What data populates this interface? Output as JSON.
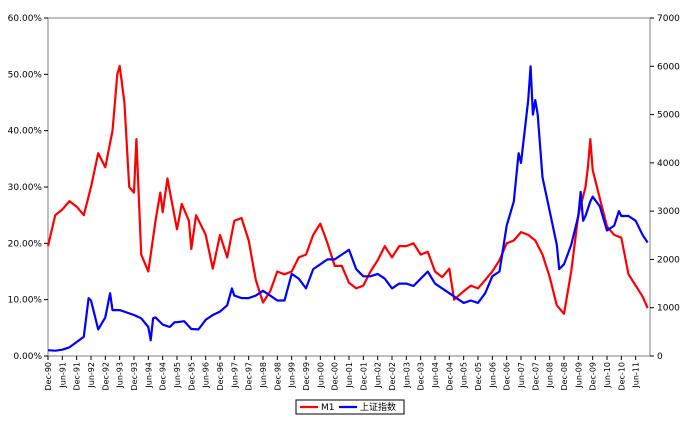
{
  "chart_data": {
    "type": "line",
    "title": "",
    "xlabel": "",
    "ylabel": "",
    "grid": false,
    "legend_position": "bottom",
    "y_left": {
      "min": 0,
      "max": 60,
      "unit": "%",
      "ticks": [
        "0.00%",
        "10.00%",
        "20.00%",
        "30.00%",
        "40.00%",
        "50.00%",
        "60.00%"
      ]
    },
    "y_right": {
      "min": 0,
      "max": 7000,
      "ticks": [
        "0",
        "1000",
        "2000",
        "3000",
        "4000",
        "5000",
        "6000",
        "7000"
      ]
    },
    "x_ticks": [
      "Dec-90",
      "Jun-91",
      "Dec-91",
      "Jun-92",
      "Dec-92",
      "Jun-93",
      "Dec-93",
      "Jun-94",
      "Dec-94",
      "Jun-95",
      "Dec-95",
      "Jun-96",
      "Dec-96",
      "Jun-97",
      "Dec-97",
      "Jun-98",
      "Dec-98",
      "Jun-99",
      "Dec-99",
      "Jun-00",
      "Dec-00",
      "Jun-01",
      "Dec-01",
      "Jun-02",
      "Dec-02",
      "Jun-03",
      "Dec-03",
      "Jun-04",
      "Dec-04",
      "Jun-05",
      "Dec-05",
      "Jun-06",
      "Dec-06",
      "Jun-07",
      "Dec-07",
      "Jun-08",
      "Dec-08",
      "Jun-09",
      "Dec-09",
      "Jun-10",
      "Dec-10",
      "Jun-11"
    ],
    "series": [
      {
        "name": "M1",
        "axis": "left",
        "color": "#ff0000",
        "points": [
          [
            "Dec-90",
            19.5
          ],
          [
            "Mar-91",
            25.0
          ],
          [
            "Jun-91",
            26.0
          ],
          [
            "Sep-91",
            27.5
          ],
          [
            "Dec-91",
            26.5
          ],
          [
            "Mar-92",
            25.0
          ],
          [
            "Jun-92",
            30.0
          ],
          [
            "Sep-92",
            36.0
          ],
          [
            "Dec-92",
            33.5
          ],
          [
            "Mar-93",
            40.0
          ],
          [
            "May-93",
            50.0
          ],
          [
            "Jun-93",
            51.5
          ],
          [
            "Aug-93",
            45.0
          ],
          [
            "Oct-93",
            30.0
          ],
          [
            "Dec-93",
            29.0
          ],
          [
            "Jan-94",
            38.5
          ],
          [
            "Mar-94",
            18.0
          ],
          [
            "Jun-94",
            15.0
          ],
          [
            "Sep-94",
            24.0
          ],
          [
            "Nov-94",
            29.0
          ],
          [
            "Dec-94",
            25.5
          ],
          [
            "Feb-95",
            31.5
          ],
          [
            "Jun-95",
            22.5
          ],
          [
            "Aug-95",
            27.0
          ],
          [
            "Nov-95",
            24.0
          ],
          [
            "Dec-95",
            19.0
          ],
          [
            "Feb-96",
            25.0
          ],
          [
            "Jun-96",
            21.5
          ],
          [
            "Sep-96",
            15.5
          ],
          [
            "Dec-96",
            21.5
          ],
          [
            "Mar-97",
            17.5
          ],
          [
            "Jun-97",
            24.0
          ],
          [
            "Sep-97",
            24.5
          ],
          [
            "Dec-97",
            20.5
          ],
          [
            "Mar-98",
            13.5
          ],
          [
            "Jun-98",
            9.5
          ],
          [
            "Sep-98",
            11.5
          ],
          [
            "Dec-98",
            15.0
          ],
          [
            "Mar-99",
            14.5
          ],
          [
            "Jun-99",
            15.0
          ],
          [
            "Sep-99",
            17.5
          ],
          [
            "Dec-99",
            18.0
          ],
          [
            "Mar-00",
            21.5
          ],
          [
            "Jun-00",
            23.5
          ],
          [
            "Sep-00",
            20.0
          ],
          [
            "Dec-00",
            16.0
          ],
          [
            "Mar-01",
            16.0
          ],
          [
            "Jun-01",
            13.0
          ],
          [
            "Sep-01",
            12.0
          ],
          [
            "Dec-01",
            12.5
          ],
          [
            "Mar-02",
            15.0
          ],
          [
            "Jun-02",
            17.0
          ],
          [
            "Sep-02",
            19.5
          ],
          [
            "Dec-02",
            17.5
          ],
          [
            "Mar-03",
            19.5
          ],
          [
            "Jun-03",
            19.5
          ],
          [
            "Sep-03",
            20.0
          ],
          [
            "Dec-03",
            18.0
          ],
          [
            "Mar-04",
            18.5
          ],
          [
            "Jun-04",
            15.0
          ],
          [
            "Sep-04",
            14.0
          ],
          [
            "Dec-04",
            15.5
          ],
          [
            "Feb-05",
            10.0
          ],
          [
            "Jun-05",
            11.5
          ],
          [
            "Sep-05",
            12.5
          ],
          [
            "Dec-05",
            12.0
          ],
          [
            "Mar-06",
            13.5
          ],
          [
            "Jun-06",
            15.0
          ],
          [
            "Sep-06",
            17.0
          ],
          [
            "Dec-06",
            20.0
          ],
          [
            "Mar-07",
            20.5
          ],
          [
            "Jun-07",
            22.0
          ],
          [
            "Sep-07",
            21.5
          ],
          [
            "Dec-07",
            20.5
          ],
          [
            "Mar-08",
            18.0
          ],
          [
            "Jun-08",
            14.0
          ],
          [
            "Sep-08",
            9.0
          ],
          [
            "Dec-08",
            7.5
          ],
          [
            "Mar-09",
            15.0
          ],
          [
            "Jun-09",
            25.0
          ],
          [
            "Sep-09",
            30.0
          ],
          [
            "Oct-09",
            33.5
          ],
          [
            "Nov-09",
            38.5
          ],
          [
            "Dec-09",
            33.0
          ],
          [
            "Mar-10",
            28.0
          ],
          [
            "Jun-10",
            23.0
          ],
          [
            "Sep-10",
            21.5
          ],
          [
            "Dec-10",
            21.0
          ],
          [
            "Mar-11",
            14.5
          ],
          [
            "Jun-11",
            12.5
          ],
          [
            "Sep-11",
            10.5
          ],
          [
            "Nov-11",
            8.5
          ]
        ]
      },
      {
        "name": "上证指数",
        "axis": "right",
        "color": "#0000ff",
        "points": [
          [
            "Dec-90",
            120
          ],
          [
            "Mar-91",
            110
          ],
          [
            "Jun-91",
            130
          ],
          [
            "Sep-91",
            180
          ],
          [
            "Dec-91",
            290
          ],
          [
            "Mar-92",
            400
          ],
          [
            "May-92",
            1200
          ],
          [
            "Jun-92",
            1150
          ],
          [
            "Sep-92",
            550
          ],
          [
            "Dec-92",
            800
          ],
          [
            "Feb-93",
            1300
          ],
          [
            "Mar-93",
            950
          ],
          [
            "Jun-93",
            950
          ],
          [
            "Sep-93",
            900
          ],
          [
            "Dec-93",
            850
          ],
          [
            "Mar-94",
            780
          ],
          [
            "Jun-94",
            600
          ],
          [
            "Jul-94",
            325
          ],
          [
            "Aug-94",
            780
          ],
          [
            "Sep-94",
            800
          ],
          [
            "Dec-94",
            650
          ],
          [
            "Mar-95",
            600
          ],
          [
            "May-95",
            700
          ],
          [
            "Jun-95",
            700
          ],
          [
            "Sep-95",
            720
          ],
          [
            "Dec-95",
            560
          ],
          [
            "Mar-96",
            550
          ],
          [
            "Jun-96",
            750
          ],
          [
            "Sep-96",
            850
          ],
          [
            "Dec-96",
            920
          ],
          [
            "Mar-97",
            1050
          ],
          [
            "May-97",
            1400
          ],
          [
            "Jun-97",
            1250
          ],
          [
            "Sep-97",
            1200
          ],
          [
            "Dec-97",
            1200
          ],
          [
            "Mar-98",
            1250
          ],
          [
            "Jun-98",
            1350
          ],
          [
            "Sep-98",
            1250
          ],
          [
            "Dec-98",
            1150
          ],
          [
            "Mar-99",
            1150
          ],
          [
            "Jun-99",
            1700
          ],
          [
            "Sep-99",
            1600
          ],
          [
            "Dec-99",
            1400
          ],
          [
            "Mar-00",
            1800
          ],
          [
            "Jun-00",
            1900
          ],
          [
            "Sep-00",
            2000
          ],
          [
            "Dec-00",
            2000
          ],
          [
            "Mar-01",
            2100
          ],
          [
            "Jun-01",
            2200
          ],
          [
            "Sep-01",
            1800
          ],
          [
            "Dec-01",
            1650
          ],
          [
            "Mar-02",
            1650
          ],
          [
            "Jun-02",
            1700
          ],
          [
            "Sep-02",
            1600
          ],
          [
            "Dec-02",
            1400
          ],
          [
            "Mar-03",
            1500
          ],
          [
            "Jun-03",
            1500
          ],
          [
            "Sep-03",
            1450
          ],
          [
            "Dec-03",
            1600
          ],
          [
            "Mar-04",
            1750
          ],
          [
            "Jun-04",
            1500
          ],
          [
            "Sep-04",
            1400
          ],
          [
            "Dec-04",
            1300
          ],
          [
            "Mar-05",
            1200
          ],
          [
            "Jun-05",
            1100
          ],
          [
            "Sep-05",
            1150
          ],
          [
            "Dec-05",
            1100
          ],
          [
            "Mar-06",
            1300
          ],
          [
            "Jun-06",
            1650
          ],
          [
            "Sep-06",
            1750
          ],
          [
            "Dec-06",
            2700
          ],
          [
            "Mar-07",
            3200
          ],
          [
            "May-07",
            4200
          ],
          [
            "Jun-07",
            4000
          ],
          [
            "Sep-07",
            5300
          ],
          [
            "Oct-07",
            6000
          ],
          [
            "Nov-07",
            5000
          ],
          [
            "Dec-07",
            5300
          ],
          [
            "Jan-08",
            5000
          ],
          [
            "Mar-08",
            3700
          ],
          [
            "Jun-08",
            3000
          ],
          [
            "Sep-08",
            2300
          ],
          [
            "Oct-08",
            1800
          ],
          [
            "Dec-08",
            1900
          ],
          [
            "Mar-09",
            2300
          ],
          [
            "Jun-09",
            2900
          ],
          [
            "Jul-09",
            3400
          ],
          [
            "Aug-09",
            2800
          ],
          [
            "Sep-09",
            2900
          ],
          [
            "Nov-09",
            3200
          ],
          [
            "Dec-09",
            3300
          ],
          [
            "Mar-10",
            3100
          ],
          [
            "Jun-10",
            2600
          ],
          [
            "Sep-10",
            2700
          ],
          [
            "Nov-10",
            3000
          ],
          [
            "Dec-10",
            2900
          ],
          [
            "Mar-11",
            2900
          ],
          [
            "Jun-11",
            2800
          ],
          [
            "Sep-11",
            2500
          ],
          [
            "Nov-11",
            2350
          ]
        ]
      }
    ]
  }
}
